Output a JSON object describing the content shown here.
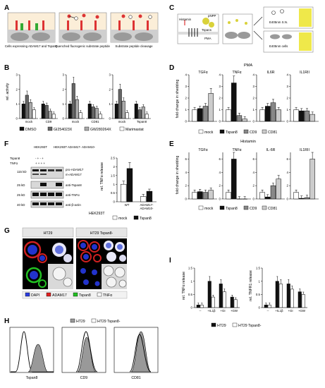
{
  "panels": {
    "A": {
      "letter": "A",
      "captions": [
        "Cells expressing ADAM17 and Tspans",
        "Quenched fluorogenic substrate peptide",
        "Substrate peptide cleavage"
      ]
    },
    "B": {
      "letter": "B",
      "ylabel": "rel. activity",
      "legend": [
        "DMSO",
        "GI254023X",
        "GW280264X",
        "Marimastat"
      ],
      "colors": [
        "#111111",
        "#666666",
        "#aaaaaa",
        "#ffffff"
      ],
      "ticks": [
        "0",
        "1",
        "2",
        "3"
      ]
    },
    "C": {
      "letter": "C",
      "texts": [
        "pNPP",
        "Histamin",
        "PMA",
        "Tspans",
        "E405nm S.N.",
        "E405nm cells"
      ]
    },
    "D": {
      "letter": "D",
      "title": "PMA",
      "ylabel": "fold change in shedding",
      "legend": [
        "mock",
        "Tspan8",
        "CD9",
        "CD81"
      ],
      "ticks": [
        "0",
        "1",
        "2",
        "3",
        "4"
      ]
    },
    "E": {
      "letter": "E",
      "title": "Histamin",
      "ylabel": "fold change in shedding",
      "legend": [
        "mock",
        "Tspan8",
        "CD9",
        "CD81"
      ]
    },
    "F": {
      "letter": "F",
      "lane_headers": [
        "HEK293T",
        "HEK293T ADAM17- ADAM10-"
      ],
      "row_labels": [
        "Tspan8",
        "TNFα"
      ],
      "row_values": [
        "- + - +",
        "+ + + +"
      ],
      "mw": [
        "115 kD",
        "25 kD",
        "25 kD",
        "40 kD"
      ],
      "blot_labels": [
        "pro-ADAM17",
        "m-ADAM17",
        "anti-Tspan8",
        "anti-TNFα",
        "anti-β-actin"
      ],
      "bar_ylabel": "rel. TNFα release",
      "bar_ticks": [
        "0.0",
        "0.5",
        "1.0",
        "1.5",
        "2.0",
        "2.5"
      ],
      "x_prefix": "HEK293T",
      "x_groups": [
        "WT",
        "ADAM17- ADAM10-"
      ],
      "legend": [
        "mock",
        "Tspan8"
      ],
      "sig": [
        "*",
        "***"
      ]
    },
    "G": {
      "letter": "G",
      "headers": [
        "HT29",
        "HT29 Tspan8-"
      ],
      "legend": [
        "DAPI",
        "ADAM17",
        "Tspan8",
        "TNFα"
      ],
      "legend_colors": [
        "#2a3de0",
        "#e02020",
        "#22c022",
        "#ffffff"
      ]
    },
    "H": {
      "letter": "H",
      "legend": [
        "HT29",
        "HT29 Tspan8-"
      ],
      "xlabels": [
        "Tspan8",
        "CD9",
        "CD81"
      ]
    },
    "I": {
      "letter": "I",
      "ylabels": [
        "rel. TNFα release",
        "rel. TNFR1 release"
      ],
      "xlabels": [
        "+IL1β",
        "+GI",
        "+GW"
      ],
      "legend": [
        "HT29",
        "HT29 Tspan8-"
      ],
      "sig": [
        "***",
        "***",
        "**",
        "**",
        "*",
        "*"
      ]
    }
  },
  "chart_data": [
    {
      "type": "bar",
      "title": "",
      "ylabel": "rel. activity",
      "ylim": [
        0,
        3
      ],
      "categories": [
        "mock",
        "CD9",
        "mock",
        "CD81",
        "mock",
        "Tspan8"
      ],
      "series": [
        {
          "name": "DMSO",
          "values": [
            1.0,
            1.0,
            1.0,
            1.0,
            1.0,
            1.0
          ]
        },
        {
          "name": "GI254023X",
          "values": [
            1.6,
            0.9,
            2.4,
            0.8,
            2.0,
            0.6
          ]
        },
        {
          "name": "GW280264X",
          "values": [
            1.1,
            0.5,
            1.3,
            0.7,
            1.2,
            0.8
          ]
        },
        {
          "name": "Marimastat",
          "values": [
            0.6,
            0.3,
            0.4,
            0.3,
            0.4,
            0.3
          ]
        }
      ]
    },
    {
      "type": "bar",
      "title": "PMA",
      "ylabel": "fold change in shedding",
      "ylim": [
        0,
        4
      ],
      "categories": [
        "TGFα",
        "TNFα",
        "IL6R",
        "IL1RII"
      ],
      "series": [
        {
          "name": "mock",
          "values": [
            1.0,
            1.0,
            1.0,
            1.0
          ]
        },
        {
          "name": "Tspan8",
          "values": [
            1.1,
            3.3,
            1.3,
            0.9
          ]
        },
        {
          "name": "CD9",
          "values": [
            1.3,
            0.5,
            1.6,
            0.9
          ]
        },
        {
          "name": "CD81",
          "values": [
            2.4,
            0.2,
            1.0,
            0.6
          ]
        }
      ]
    },
    {
      "type": "bar",
      "title": "Histamin",
      "ylabel": "fold change in shedding",
      "categories": [
        "TGFα",
        "TNFα",
        "IL-6R",
        "IL1RII"
      ],
      "series": [
        {
          "name": "mock",
          "values": [
            1.0,
            1.0,
            1.0,
            1.0
          ]
        },
        {
          "name": "Tspan8",
          "values": [
            1.1,
            6.0,
            0.3,
            0.1
          ]
        },
        {
          "name": "CD9",
          "values": [
            1.0,
            0.0,
            2.0,
            0.2
          ]
        },
        {
          "name": "CD81",
          "values": [
            1.3,
            0.0,
            3.0,
            6.0
          ]
        }
      ]
    },
    {
      "type": "bar",
      "title": "",
      "ylabel": "rel. TNFα release",
      "ylim": [
        0,
        2.5
      ],
      "categories": [
        "WT",
        "ADAM17- ADAM10-"
      ],
      "series": [
        {
          "name": "mock",
          "values": [
            1.0,
            0.3
          ]
        },
        {
          "name": "Tspan8",
          "values": [
            1.9,
            0.6
          ]
        }
      ]
    },
    {
      "type": "bar",
      "title": "",
      "ylabel": "rel. TNFα release",
      "ylim": [
        0,
        1.5
      ],
      "categories": [
        "--",
        "+IL1β",
        "+GI",
        "+GW"
      ],
      "series": [
        {
          "name": "HT29",
          "values": [
            0.1,
            1.0,
            0.9,
            0.4
          ]
        },
        {
          "name": "HT29 Tspan8-",
          "values": [
            0.1,
            0.4,
            0.6,
            0.3
          ]
        }
      ]
    },
    {
      "type": "bar",
      "title": "",
      "ylabel": "rel. TNFR1 release",
      "ylim": [
        0,
        1.5
      ],
      "categories": [
        "--",
        "+IL1β",
        "+GI",
        "+GW"
      ],
      "series": [
        {
          "name": "HT29",
          "values": [
            0.1,
            1.0,
            0.9,
            0.6
          ]
        },
        {
          "name": "HT29 Tspan8-",
          "values": [
            0.1,
            0.9,
            0.7,
            0.5
          ]
        }
      ]
    }
  ]
}
